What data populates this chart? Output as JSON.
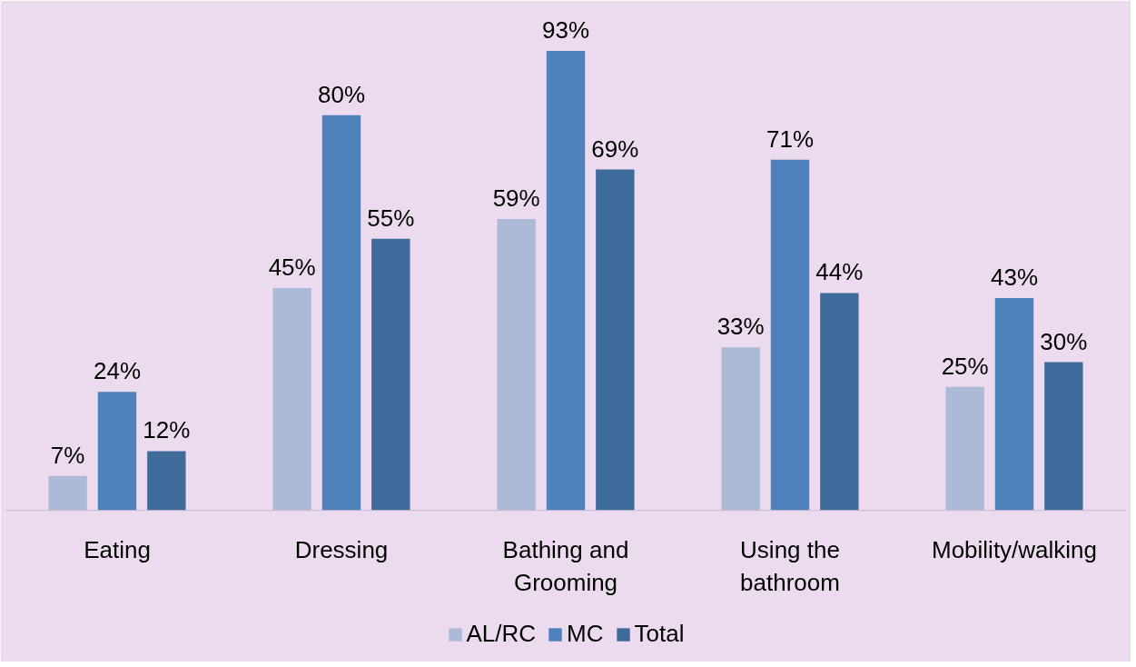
{
  "chart_data": {
    "type": "bar",
    "categories": [
      "Eating",
      "Dressing",
      "Bathing and Grooming",
      "Using the bathroom",
      "Mobility/walking"
    ],
    "series": [
      {
        "name": "AL/RC",
        "color": "#adbad7",
        "values": [
          7,
          45,
          59,
          33,
          25
        ],
        "value_labels": [
          "7%",
          "45%",
          "59%",
          "33%",
          "25%"
        ]
      },
      {
        "name": "MC",
        "color": "#4f81bd",
        "values": [
          24,
          80,
          93,
          71,
          43
        ],
        "value_labels": [
          "24%",
          "80%",
          "93%",
          "71%",
          "43%"
        ]
      },
      {
        "name": "Total",
        "color": "#3f6b9b",
        "values": [
          12,
          55,
          69,
          44,
          30
        ],
        "value_labels": [
          "12%",
          "55%",
          "69%",
          "44%",
          "30%"
        ]
      }
    ],
    "legend": "bottom",
    "grid": false
  }
}
